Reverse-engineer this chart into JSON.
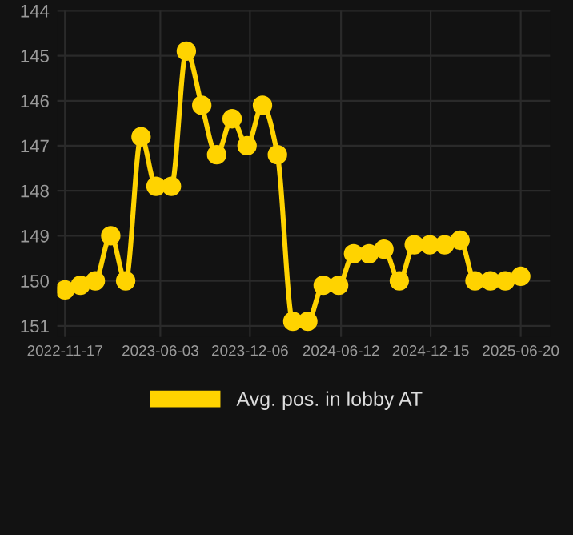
{
  "chart_data": {
    "type": "line",
    "x": [
      "2022-11-17",
      "2022-12-19",
      "2023-01-19",
      "2023-02-20",
      "2023-03-23",
      "2023-04-24",
      "2023-05-25",
      "2023-06-26",
      "2023-07-27",
      "2023-08-28",
      "2023-09-28",
      "2023-10-30",
      "2023-11-30",
      "2024-01-01",
      "2024-02-01",
      "2024-03-04",
      "2024-04-04",
      "2024-05-06",
      "2024-06-07",
      "2024-07-08",
      "2024-08-09",
      "2024-09-09",
      "2024-10-11",
      "2024-11-11",
      "2024-12-13",
      "2025-01-13",
      "2025-02-14",
      "2025-03-17",
      "2025-04-18",
      "2025-05-19",
      "2025-06-20"
    ],
    "series": [
      {
        "name": "Avg. pos. in lobby AT",
        "color": "#ffd300",
        "values": [
          150.2,
          150.1,
          150.0,
          149.0,
          150.0,
          146.8,
          147.9,
          147.9,
          144.9,
          146.1,
          147.2,
          146.4,
          147.0,
          146.1,
          147.2,
          150.9,
          150.9,
          150.1,
          150.1,
          149.4,
          149.4,
          149.3,
          150.0,
          149.2,
          149.2,
          149.2,
          149.1,
          150.0,
          150.0,
          150.0,
          149.9
        ]
      }
    ],
    "xlim": [
      "2022-11-01",
      "2025-08-20"
    ],
    "xticks": [
      "2022-11-17",
      "2023-06-03",
      "2023-12-06",
      "2024-06-12",
      "2024-12-15",
      "2025-06-20"
    ],
    "ylim": [
      151.25,
      144
    ],
    "yticks": [
      144,
      145,
      146,
      147,
      148,
      149,
      150,
      151
    ],
    "grid": true,
    "legend": "bottom",
    "marker": "circle",
    "line_style": "solid"
  }
}
